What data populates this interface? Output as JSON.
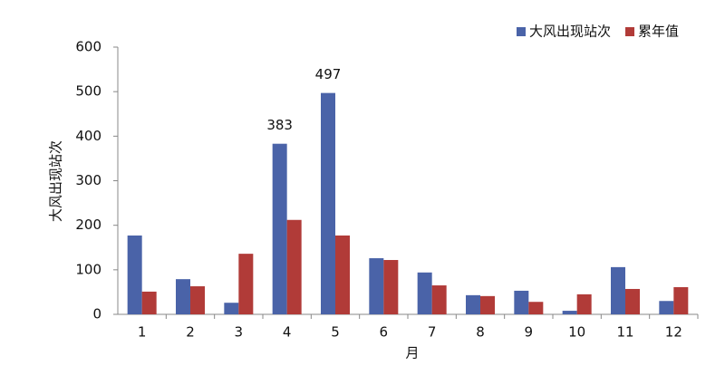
{
  "chart_data": {
    "type": "bar",
    "categories": [
      "1",
      "2",
      "3",
      "4",
      "5",
      "6",
      "7",
      "8",
      "9",
      "10",
      "11",
      "12"
    ],
    "series": [
      {
        "name": "大风出现站次",
        "color": "#4a63a8",
        "values": [
          177,
          79,
          26,
          383,
          497,
          126,
          94,
          43,
          53,
          8,
          106,
          30
        ],
        "value_labels": [
          null,
          null,
          null,
          "383",
          "497",
          null,
          null,
          null,
          null,
          null,
          null,
          null
        ]
      },
      {
        "name": "累年值",
        "color": "#b13b38",
        "values": [
          51,
          63,
          136,
          212,
          177,
          122,
          65,
          41,
          28,
          45,
          57,
          61
        ]
      }
    ],
    "xlabel": "月",
    "ylabel": "大风出现站次",
    "ylim": [
      0,
      600
    ],
    "yticks": [
      0,
      100,
      200,
      300,
      400,
      500,
      600
    ],
    "legend": "top-right"
  }
}
